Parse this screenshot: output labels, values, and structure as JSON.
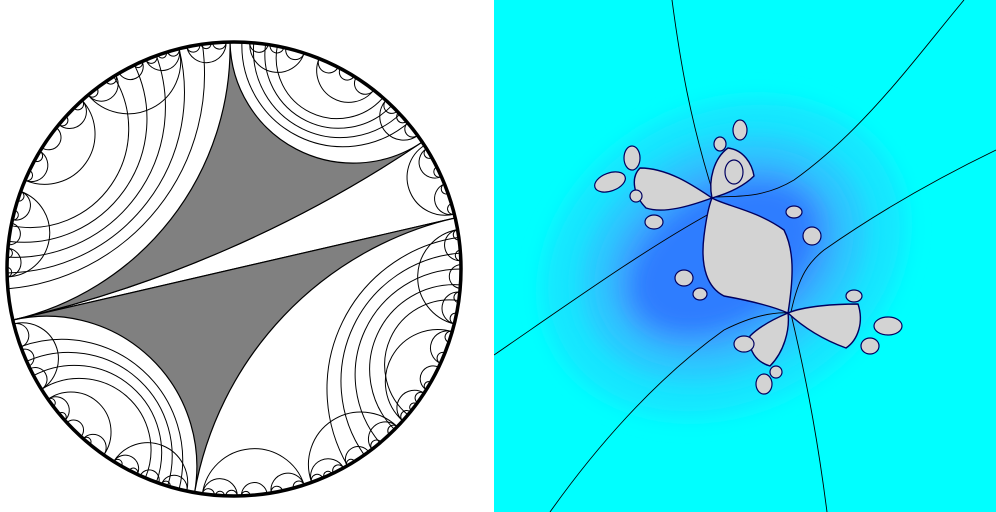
{
  "figures": [
    {
      "name": "lamination-disk",
      "fill_color": "#808080",
      "line_color": "#000000",
      "background": "#ffffff",
      "gaps": 3
    },
    {
      "name": "julia-set",
      "outer_color": "#00ffff",
      "mid_color": "#33ccff",
      "near_color": "#0033ff",
      "filled_color": "#d3d3d3",
      "ray_color": "#000000"
    }
  ]
}
